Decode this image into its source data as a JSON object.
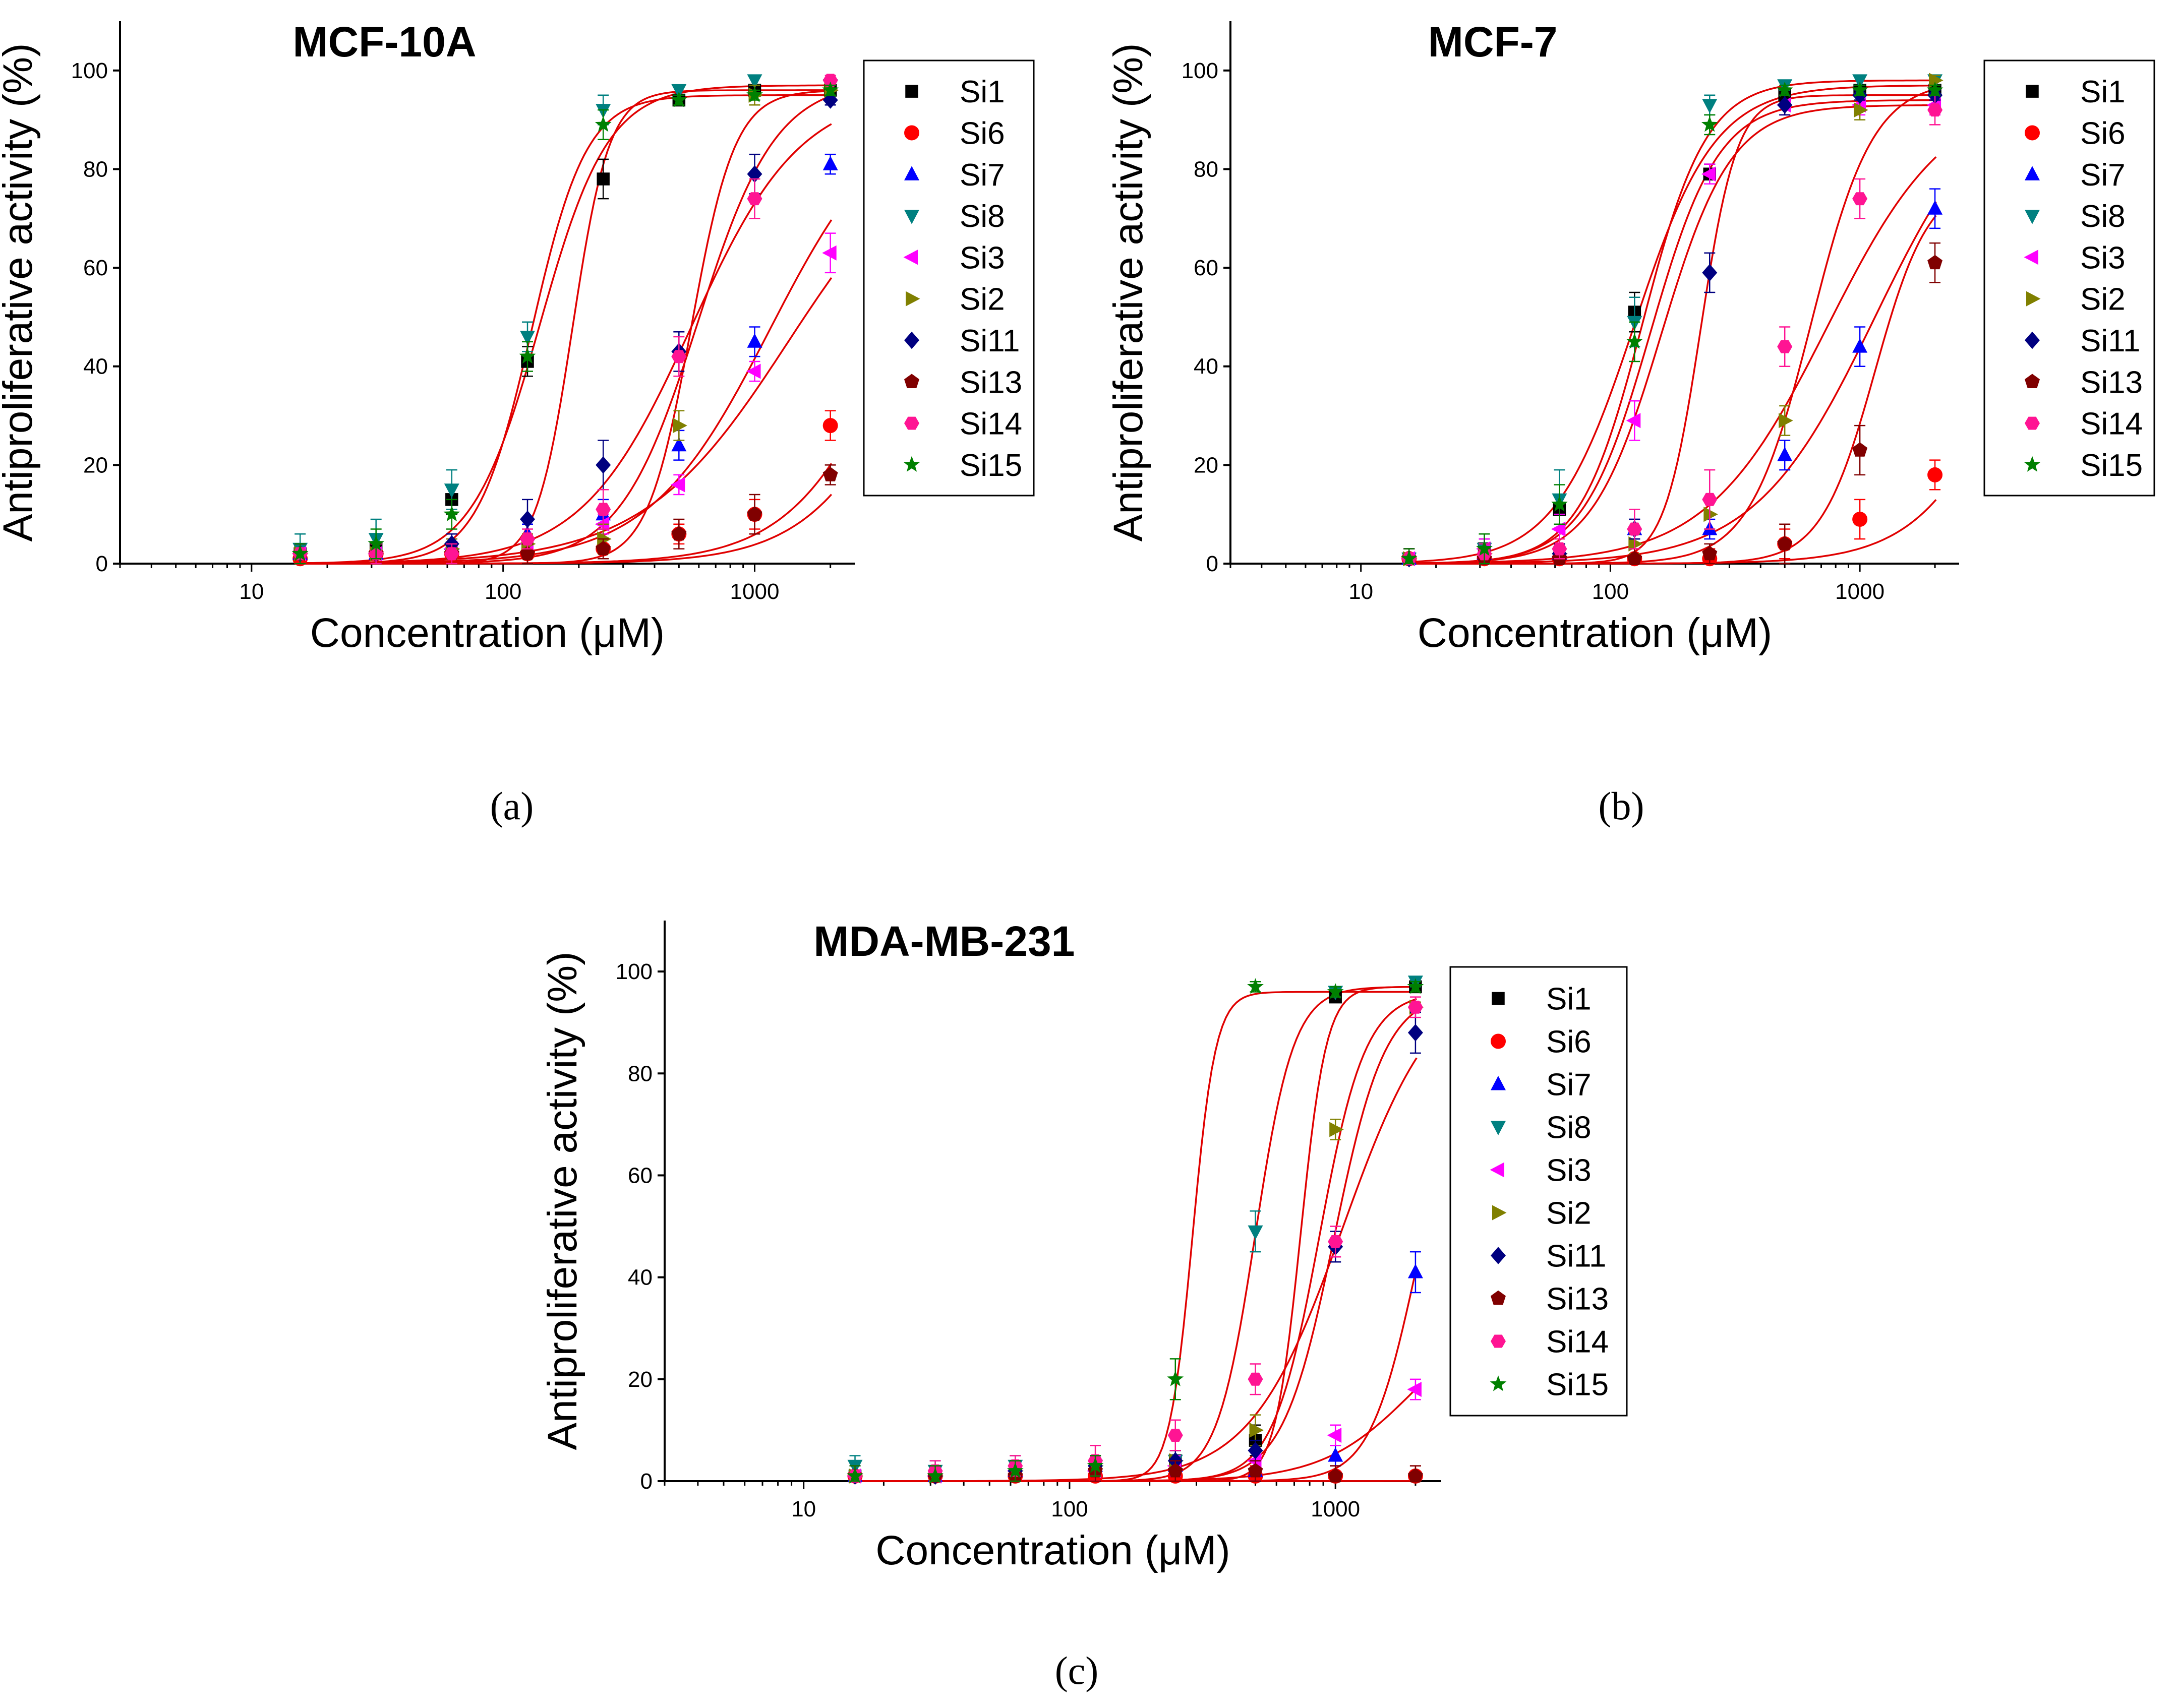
{
  "chart_data": [
    {
      "type": "scatter",
      "panel": "a",
      "caption": "(a)",
      "title": "MCF-10A",
      "xlabel": "Concentration (μM)",
      "ylabel": "Antiproliferative activity (%)",
      "xscale": "log",
      "xlim": [
        3,
        2500
      ],
      "ylim": [
        0,
        110
      ],
      "xticks": [
        10,
        100,
        1000
      ],
      "xtick_labels": [
        "10",
        "100",
        "1000"
      ],
      "yticks": [
        0,
        20,
        40,
        60,
        80,
        100
      ],
      "ytick_labels": [
        "0",
        "20",
        "40",
        "60",
        "80",
        "100"
      ],
      "legend_position": "right",
      "x": [
        15.6,
        31.25,
        62.5,
        125,
        250,
        500,
        1000,
        2000
      ],
      "series": [
        {
          "name": "Si1",
          "values": [
            2,
            3,
            13,
            41,
            78,
            94,
            96,
            96
          ],
          "err": [
            2,
            3,
            3,
            3,
            4,
            1,
            1,
            1
          ],
          "fit": [
            189,
            6,
            96
          ]
        },
        {
          "name": "Si6",
          "values": [
            1,
            2,
            2,
            2,
            3,
            6,
            10,
            28
          ],
          "err": [
            2,
            2,
            2,
            2,
            2,
            2,
            3,
            3
          ],
          "fit": [
            4000,
            2,
            100
          ]
        },
        {
          "name": "Si7",
          "values": [
            2,
            2,
            4,
            6,
            10,
            24,
            45,
            81
          ],
          "err": [
            2,
            2,
            2,
            2,
            3,
            3,
            3,
            2
          ],
          "fit": [
            1150,
            1.8,
            95
          ]
        },
        {
          "name": "Si8",
          "values": [
            3,
            5,
            15,
            46,
            92,
            96,
            98,
            97
          ],
          "err": [
            3,
            4,
            4,
            3,
            3,
            1,
            1,
            1
          ],
          "fit": [
            140,
            3.2,
            97
          ]
        },
        {
          "name": "Si3",
          "values": [
            2,
            2,
            3,
            4,
            8,
            16,
            39,
            63
          ],
          "err": [
            2,
            2,
            2,
            2,
            2,
            2,
            2,
            4
          ],
          "fit": [
            1360,
            1.5,
            90
          ]
        },
        {
          "name": "Si2",
          "values": [
            2,
            2,
            3,
            4,
            5,
            28,
            95,
            96
          ],
          "err": [
            2,
            2,
            2,
            2,
            3,
            3,
            2,
            1
          ],
          "fit": [
            560,
            5,
            96
          ]
        },
        {
          "name": "Si11",
          "values": [
            2,
            2,
            4,
            9,
            20,
            43,
            79,
            94
          ],
          "err": [
            2,
            2,
            2,
            4,
            5,
            4,
            4,
            1
          ],
          "fit": [
            560,
            2,
            96
          ]
        },
        {
          "name": "Si13",
          "values": [
            2,
            2,
            2,
            2,
            3,
            6,
            10,
            18
          ],
          "err": [
            2,
            2,
            2,
            2,
            2,
            3,
            4,
            2
          ],
          "fit": [
            5000,
            2,
            100
          ]
        },
        {
          "name": "Si14",
          "values": [
            2,
            2,
            2,
            5,
            11,
            42,
            74,
            98
          ],
          "err": [
            2,
            2,
            2,
            2,
            4,
            4,
            4,
            1
          ],
          "fit": [
            595,
            2.8,
            98
          ]
        },
        {
          "name": "Si15",
          "values": [
            2,
            4,
            10,
            42,
            89,
            94,
            95,
            96
          ],
          "err": [
            2,
            3,
            3,
            3,
            3,
            1,
            1,
            1
          ],
          "fit": [
            130,
            4,
            95
          ]
        }
      ]
    },
    {
      "type": "scatter",
      "panel": "b",
      "caption": "(b)",
      "title": "MCF-7",
      "xlabel": "Concentration (μM)",
      "ylabel": "Antiproliferative activity (%)",
      "xscale": "log",
      "xlim": [
        3,
        2500
      ],
      "ylim": [
        0,
        110
      ],
      "xticks": [
        10,
        100,
        1000
      ],
      "xtick_labels": [
        "10",
        "100",
        "1000"
      ],
      "yticks": [
        0,
        20,
        40,
        60,
        80,
        100
      ],
      "ytick_labels": [
        "0",
        "20",
        "40",
        "60",
        "80",
        "100"
      ],
      "legend_position": "right",
      "x": [
        15.6,
        31.25,
        62.5,
        125,
        250,
        500,
        1000,
        2000
      ],
      "series": [
        {
          "name": "Si1",
          "values": [
            1,
            3,
            11,
            51,
            79,
            95,
            96,
            96
          ],
          "err": [
            2,
            2,
            3,
            4,
            2,
            1,
            1,
            1
          ],
          "fit": [
            125,
            2.7,
            97
          ]
        },
        {
          "name": "Si6",
          "values": [
            1,
            1,
            1,
            1,
            1,
            4,
            9,
            18
          ],
          "err": [
            2,
            2,
            2,
            2,
            2,
            3,
            4,
            3
          ],
          "fit": [
            4800,
            2.2,
            100
          ]
        },
        {
          "name": "Si7",
          "values": [
            1,
            2,
            2,
            7,
            7,
            22,
            44,
            72
          ],
          "err": [
            2,
            2,
            2,
            2,
            2,
            3,
            4,
            4
          ],
          "fit": [
            1150,
            1.8,
            100
          ]
        },
        {
          "name": "Si8",
          "values": [
            1,
            3,
            13,
            49,
            93,
            97,
            98,
            98
          ],
          "err": [
            2,
            3,
            6,
            5,
            2,
            1,
            1,
            1
          ],
          "fit": [
            135,
            3.4,
            98
          ]
        },
        {
          "name": "Si3",
          "values": [
            1,
            3,
            7,
            29,
            79,
            93,
            93,
            93
          ],
          "err": [
            2,
            2,
            3,
            4,
            2,
            2,
            2,
            2
          ],
          "fit": [
            160,
            3.1,
            93
          ]
        },
        {
          "name": "Si2",
          "values": [
            1,
            2,
            2,
            4,
            10,
            29,
            92,
            98
          ],
          "err": [
            2,
            2,
            2,
            2,
            3,
            3,
            2,
            1
          ],
          "fit": [
            640,
            3.5,
            98
          ]
        },
        {
          "name": "Si11",
          "values": [
            1,
            2,
            2,
            7,
            59,
            93,
            95,
            95
          ],
          "err": [
            2,
            2,
            2,
            2,
            4,
            2,
            1,
            1
          ],
          "fit": [
            230,
            6,
            95
          ]
        },
        {
          "name": "Si13",
          "values": [
            1,
            1,
            1,
            1,
            2,
            4,
            23,
            61
          ],
          "err": [
            2,
            2,
            2,
            2,
            2,
            4,
            5,
            4
          ],
          "fit": [
            1150,
            4,
            78
          ]
        },
        {
          "name": "Si14",
          "values": [
            1,
            2,
            3,
            7,
            13,
            44,
            74,
            92
          ],
          "err": [
            2,
            2,
            2,
            4,
            6,
            4,
            4,
            3
          ],
          "fit": [
            740,
            1.8,
            96
          ]
        },
        {
          "name": "Si15",
          "values": [
            1,
            3,
            12,
            45,
            89,
            96,
            96,
            96
          ],
          "err": [
            2,
            3,
            4,
            4,
            2,
            1,
            1,
            1
          ],
          "fit": [
            145,
            3.2,
            94
          ]
        }
      ]
    },
    {
      "type": "scatter",
      "panel": "c",
      "caption": "(c)",
      "title": "MDA-MB-231",
      "xlabel": "Concentration (μM)",
      "ylabel": "Antiproliferative activity (%)",
      "xscale": "log",
      "xlim": [
        3,
        2500
      ],
      "ylim": [
        0,
        110
      ],
      "xticks": [
        10,
        100,
        1000
      ],
      "xtick_labels": [
        "10",
        "100",
        "1000"
      ],
      "yticks": [
        0,
        20,
        40,
        60,
        80,
        100
      ],
      "ytick_labels": [
        "0",
        "20",
        "40",
        "60",
        "80",
        "100"
      ],
      "legend_position": "right",
      "x": [
        15.6,
        31.25,
        62.5,
        125,
        250,
        500,
        1000,
        2000
      ],
      "series": [
        {
          "name": "Si1",
          "values": [
            1,
            1,
            2,
            3,
            4,
            8,
            95,
            97
          ],
          "err": [
            2,
            2,
            2,
            2,
            2,
            3,
            1,
            1
          ],
          "fit": [
            740,
            9,
            97
          ]
        },
        {
          "name": "Si6",
          "values": [
            1,
            1,
            1,
            1,
            1,
            1,
            1,
            1
          ],
          "err": [
            2,
            2,
            2,
            2,
            2,
            2,
            2,
            2
          ],
          "fit": [
            100000,
            1,
            1
          ]
        },
        {
          "name": "Si7",
          "values": [
            1,
            1,
            2,
            3,
            3,
            2,
            5,
            41
          ],
          "err": [
            2,
            2,
            2,
            2,
            2,
            2,
            2,
            4
          ],
          "fit": [
            2000,
            5,
            82
          ]
        },
        {
          "name": "Si8",
          "values": [
            3,
            2,
            3,
            3,
            4,
            49,
            96,
            98
          ],
          "err": [
            2,
            2,
            2,
            2,
            2,
            4,
            1,
            1
          ],
          "fit": [
            500,
            6,
            97
          ]
        },
        {
          "name": "Si3",
          "values": [
            1,
            1,
            2,
            2,
            3,
            4,
            9,
            18
          ],
          "err": [
            2,
            2,
            2,
            2,
            2,
            2,
            2,
            2
          ],
          "fit": [
            2000,
            2.5,
            36
          ]
        },
        {
          "name": "Si2",
          "values": [
            1,
            1,
            2,
            3,
            4,
            10,
            69,
            93
          ],
          "err": [
            2,
            2,
            2,
            2,
            2,
            3,
            2,
            1
          ],
          "fit": [
            870,
            5,
            96
          ]
        },
        {
          "name": "Si11",
          "values": [
            1,
            1,
            2,
            3,
            4,
            6,
            46,
            88
          ],
          "err": [
            2,
            2,
            2,
            2,
            2,
            2,
            3,
            4
          ],
          "fit": [
            990,
            4.5,
            96
          ]
        },
        {
          "name": "Si13",
          "values": [
            1,
            1,
            1,
            2,
            2,
            2,
            1,
            1
          ],
          "err": [
            2,
            2,
            2,
            2,
            2,
            2,
            2,
            2
          ],
          "fit": [
            100000,
            1,
            1
          ]
        },
        {
          "name": "Si14",
          "values": [
            1,
            2,
            3,
            4,
            9,
            20,
            47,
            93
          ],
          "err": [
            2,
            2,
            2,
            3,
            3,
            3,
            3,
            2
          ],
          "fit": [
            1070,
            2.5,
            100
          ]
        },
        {
          "name": "Si15",
          "values": [
            1,
            1,
            2,
            3,
            20,
            97,
            96,
            97
          ],
          "err": [
            2,
            2,
            2,
            2,
            4,
            1,
            1,
            1
          ],
          "fit": [
            290,
            10,
            96
          ]
        }
      ]
    }
  ],
  "series_styles": {
    "Si1": {
      "marker": "square",
      "color": "#000000"
    },
    "Si6": {
      "marker": "circle",
      "color": "#ff0000"
    },
    "Si7": {
      "marker": "triangle-up",
      "color": "#0000ff"
    },
    "Si8": {
      "marker": "triangle-down",
      "color": "#008080"
    },
    "Si3": {
      "marker": "triangle-left",
      "color": "#ff00ff"
    },
    "Si2": {
      "marker": "triangle-right",
      "color": "#808000"
    },
    "Si11": {
      "marker": "diamond",
      "color": "#000080"
    },
    "Si13": {
      "marker": "pentagon",
      "color": "#800000"
    },
    "Si14": {
      "marker": "hexagon",
      "color": "#ff1493"
    },
    "Si15": {
      "marker": "star",
      "color": "#008000"
    }
  },
  "fit_line_color": "#e00000",
  "axis_color": "#000000"
}
